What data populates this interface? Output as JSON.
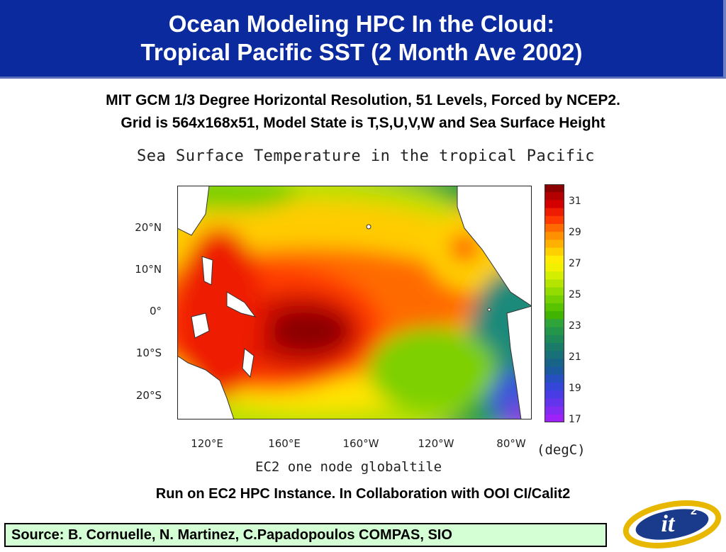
{
  "slide": {
    "title_line1": "Ocean Modeling HPC In the Cloud:",
    "title_line2": "Tropical Pacific SST (2 Month Ave 2002)",
    "subtitle_line1": "MIT GCM 1/3 Degree Horizontal Resolution, 51 Levels, Forced by NCEP2.",
    "subtitle_line2": "Grid is 564x168x51, Model State is T,S,U,V,W and Sea Surface Height",
    "run_note": "Run on EC2 HPC Instance. In Collaboration with OOI CI/Calit2",
    "source": "Source: B. Cornuelle, N. Martinez, C.Papadopoulos  COMPAS, SIO",
    "logo_text": "it",
    "logo_superscript": "2"
  },
  "figure": {
    "title": "Sea Surface Temperature in the tropical Pacific",
    "footer": "EC2 one node globaltile",
    "unit": "(degC)",
    "y_ticks": [
      "20°N",
      "10°N",
      "0°",
      "10°S",
      "20°S"
    ],
    "x_ticks": [
      "120°E",
      "160°E",
      "160°W",
      "120°W",
      "80°W"
    ],
    "colorbar_ticks": [
      "31",
      "29",
      "27",
      "25",
      "23",
      "21",
      "19",
      "17"
    ],
    "colorbar_range": [
      17,
      32
    ],
    "colors": {
      "title_bar": "#0a2a9e",
      "source_box": "#d4ffd4",
      "warmest": "#8b0000",
      "coolest": "#cc00ff"
    }
  }
}
